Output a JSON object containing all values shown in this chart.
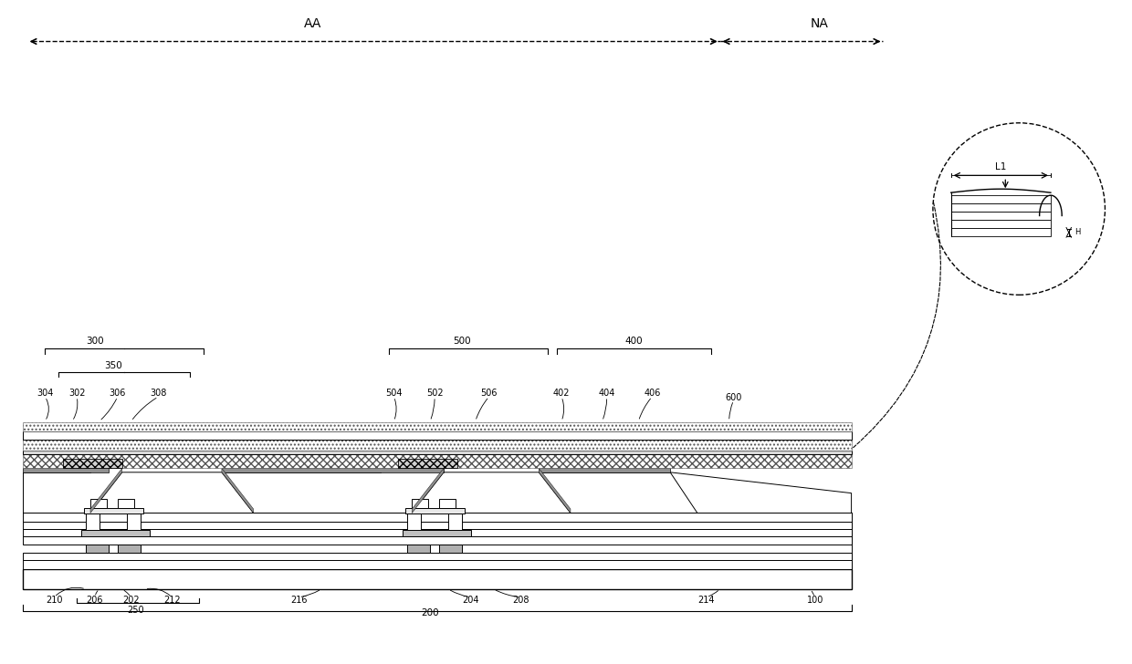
{
  "bg_color": "#ffffff",
  "line_color": "#000000",
  "fig_width": 12.4,
  "fig_height": 7.28,
  "labels": {
    "AA": "AA",
    "NA": "NA",
    "L1": "L1",
    "H1": "H",
    "300": "300",
    "350": "350",
    "304": "304",
    "302": "302",
    "306": "306",
    "308": "308",
    "500": "500",
    "504": "504",
    "502": "502",
    "506": "506",
    "400": "400",
    "402": "402",
    "404": "404",
    "406": "406",
    "600": "600",
    "210": "210",
    "206": "206",
    "202": "202",
    "212": "212",
    "250": "250",
    "216": "216",
    "204": "204",
    "208": "208",
    "214": "214",
    "100": "100",
    "200": "200"
  }
}
